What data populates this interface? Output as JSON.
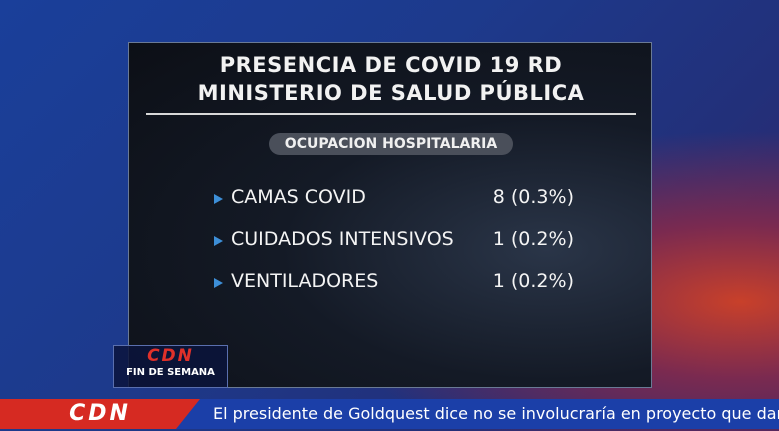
{
  "panel": {
    "title_lines": [
      "PRESENCIA DE COVID 19 RD",
      "MINISTERIO DE SALUD PÚBLICA"
    ],
    "subtitle": "OCUPACION HOSPITALARIA",
    "rows": [
      {
        "label": "CAMAS COVID",
        "value": "8 (0.3%)"
      },
      {
        "label": "CUIDADOS INTENSIVOS",
        "value": "1 (0.2%)"
      },
      {
        "label": "VENTILADORES",
        "value": "1 (0.2%)"
      }
    ]
  },
  "logo": {
    "brand": "CDN",
    "program": "FIN DE SEMANA"
  },
  "ticker": {
    "brand": "CDN",
    "text": "El presidente de Goldquest dice no se involucraría en proyecto que dañe la"
  }
}
